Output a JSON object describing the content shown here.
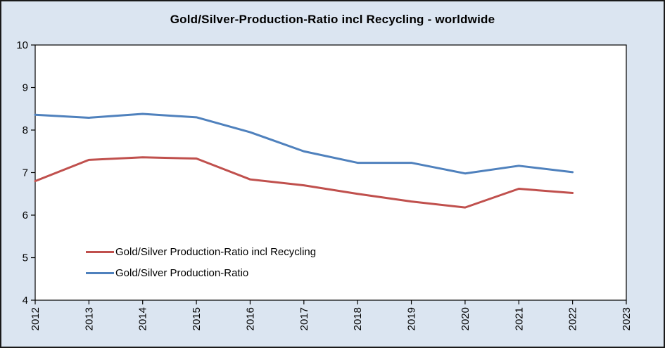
{
  "chart_data": {
    "type": "line",
    "title": "Gold/Silver-Production-Ratio incl Recycling - worldwide",
    "x": [
      2012,
      2013,
      2014,
      2015,
      2016,
      2017,
      2018,
      2019,
      2020,
      2021,
      2022
    ],
    "series": [
      {
        "name": "Gold/Silver Production-Ratio incl Recycling",
        "color": "#c0504d",
        "values": [
          6.8,
          7.3,
          7.36,
          7.33,
          6.84,
          6.7,
          6.5,
          6.32,
          6.18,
          6.62,
          6.52
        ]
      },
      {
        "name": "Gold/Silver Production-Ratio",
        "color": "#4f81bd",
        "values": [
          8.36,
          8.29,
          8.38,
          8.3,
          7.95,
          7.5,
          7.23,
          7.23,
          6.98,
          7.16,
          7.01
        ]
      }
    ],
    "xlabel": "",
    "ylabel": "",
    "xlim": [
      2012,
      2023
    ],
    "ylim": [
      4,
      10
    ],
    "y_ticks": [
      4,
      5,
      6,
      7,
      8,
      9,
      10
    ],
    "x_ticks": [
      2012,
      2013,
      2014,
      2015,
      2016,
      2017,
      2018,
      2019,
      2020,
      2021,
      2022,
      2023
    ],
    "grid": false,
    "legend_position": "inside-bottom-left",
    "background": "#dbe5f1",
    "plot_background": "#ffffff",
    "axis_color": "#000000",
    "line_width": 3
  }
}
